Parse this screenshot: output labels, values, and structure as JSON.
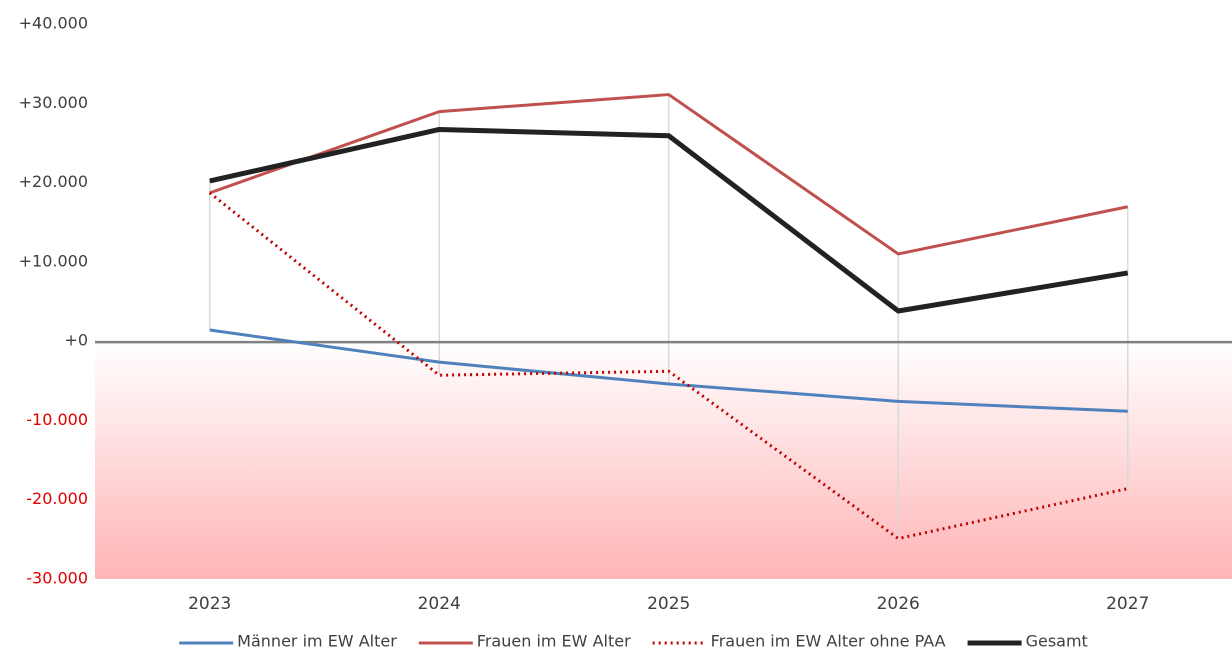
{
  "chart_data": {
    "type": "line",
    "categories": [
      "2023",
      "2024",
      "2025",
      "2026",
      "2027"
    ],
    "series": [
      {
        "name": "Männer im EW Alter",
        "color": "#4f81bd",
        "line_width": 3,
        "line_style": "solid",
        "values": [
          1400,
          -2650,
          -5400,
          -7600,
          -8850
        ]
      },
      {
        "name": "Frauen im EW Alter",
        "color": "#c0504d",
        "line_width": 3,
        "line_style": "solid",
        "values": [
          18700,
          28950,
          31100,
          11000,
          16950
        ]
      },
      {
        "name": "Frauen im EW Alter ohne PAA",
        "color": "#c00000",
        "line_width": 3,
        "line_style": "dotted",
        "values": [
          18700,
          -4300,
          -3800,
          -24900,
          -18600
        ]
      },
      {
        "name": "Gesamt",
        "color": "#222222",
        "line_width": 5,
        "line_style": "solid",
        "values": [
          20200,
          26700,
          25900,
          3800,
          8600
        ]
      }
    ],
    "ylim": [
      -30000,
      40000
    ],
    "yticks": [
      {
        "value": 40000,
        "label": "+40.000"
      },
      {
        "value": 30000,
        "label": "+30.000"
      },
      {
        "value": 20000,
        "label": "+20.000"
      },
      {
        "value": 10000,
        "label": "+10.000"
      },
      {
        "value": 0,
        "label": "+0"
      },
      {
        "value": -10000,
        "label": "-10.000"
      },
      {
        "value": -20000,
        "label": "-20.000"
      },
      {
        "value": -30000,
        "label": "-30.000"
      }
    ],
    "negative_tick_color": "#e00000",
    "negative_fill": true,
    "drop_lines": true,
    "legend": "bottom"
  }
}
